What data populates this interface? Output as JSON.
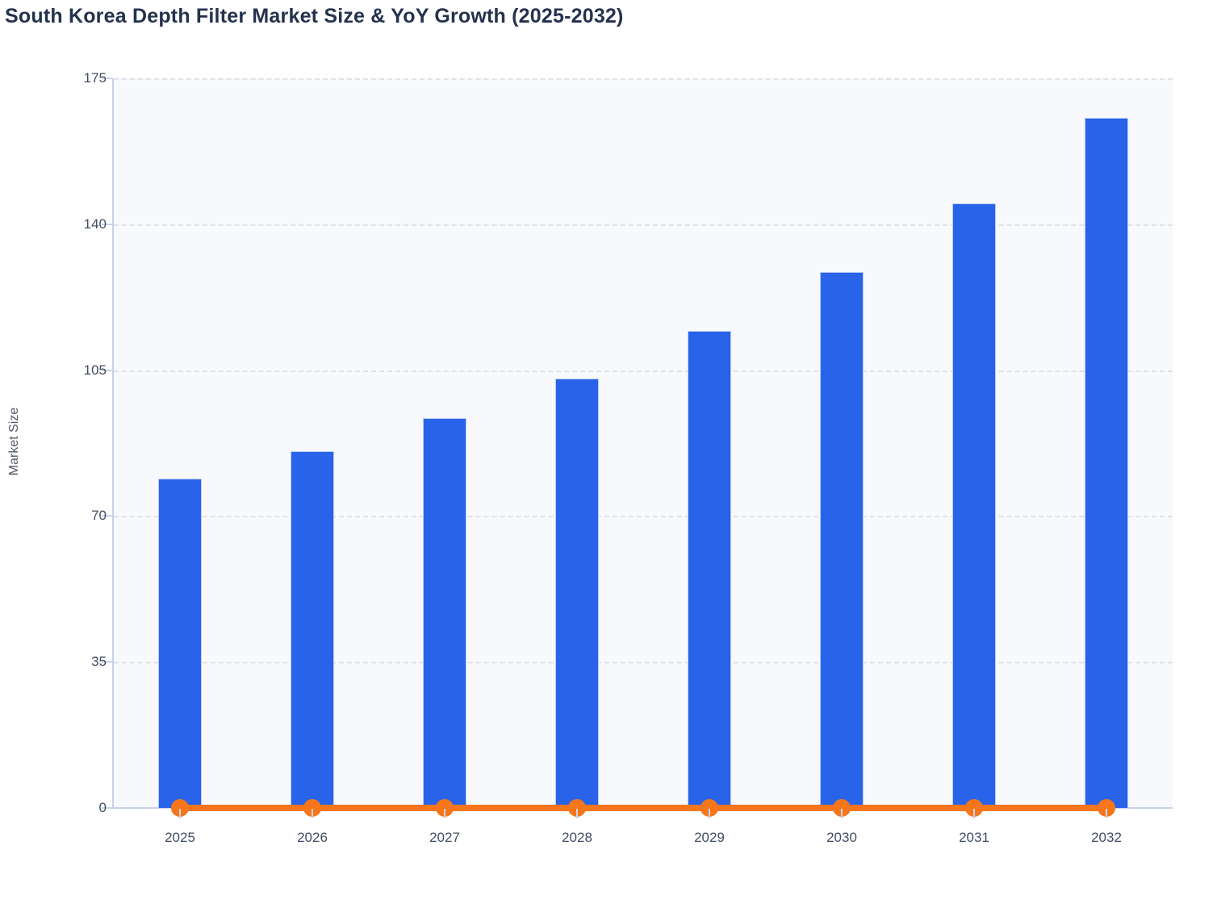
{
  "chart_data": {
    "type": "bar",
    "title": "South Korea Depth Filter Market Size & YoY Growth (2025-2032)",
    "xlabel": "",
    "ylabel": "Market Size",
    "categories": [
      "2025",
      "2026",
      "2027",
      "2028",
      "2029",
      "2030",
      "2031",
      "2032"
    ],
    "series": [
      {
        "name": "Market Size",
        "type": "bar",
        "values": [
          79,
          85.5,
          93.5,
          103,
          114.5,
          128.5,
          145,
          165.5
        ]
      },
      {
        "name": "YoY Growth",
        "type": "line",
        "values": [
          0,
          0,
          0,
          0,
          0,
          0,
          0,
          0
        ]
      }
    ],
    "ylim": [
      0,
      175
    ],
    "yticks": [
      0,
      35,
      70,
      105,
      140,
      175
    ],
    "grid": "horizontal-dashed",
    "legend_position": "none"
  },
  "style": {
    "bar_color": "#2963e9",
    "bar_border_color": "#b8ccf5",
    "line_color": "#f7761a",
    "marker_color": "#f7761a",
    "plot_bg": "#f8f9fc",
    "grid_color": "#e2e3e8",
    "axis_line_color": "#c6d1f0",
    "tick_mark_color": "#c9d4ee",
    "tick_text_color": "#424d63",
    "title_color": "#24324d",
    "axis_title_color": "#4f5866"
  }
}
